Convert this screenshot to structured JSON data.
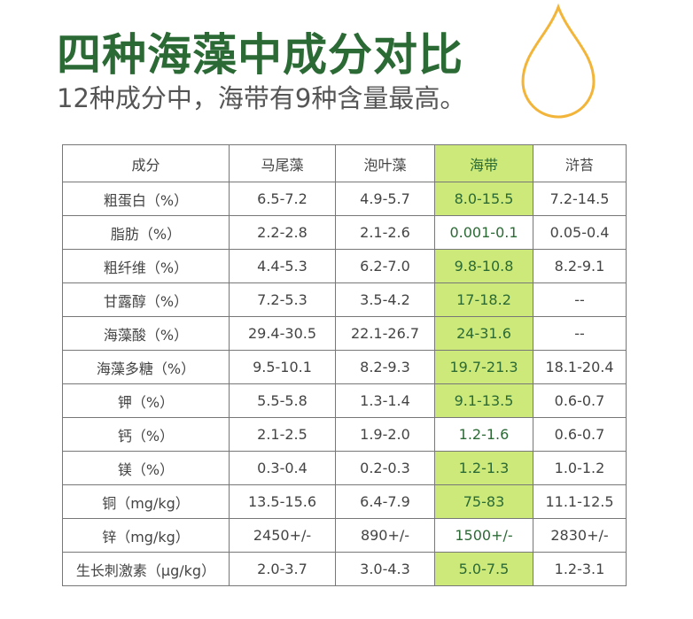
{
  "header": {
    "title": "四种海藻中成分对比",
    "subtitle": "12种成分中，海带有9种含量最高。"
  },
  "table": {
    "columns": [
      {
        "label": "成分",
        "highlight": false
      },
      {
        "label": "马尾藻",
        "highlight": false
      },
      {
        "label": "泡叶藻",
        "highlight": false
      },
      {
        "label": "海带",
        "highlight": true
      },
      {
        "label": "浒苔",
        "highlight": false
      }
    ],
    "rows": [
      {
        "cells": [
          "粗蛋白（%）",
          "6.5-7.2",
          "4.9-5.7",
          "8.0-15.5",
          "7.2-14.5"
        ],
        "highlight": true
      },
      {
        "cells": [
          "脂肪（%）",
          "2.2-2.8",
          "2.1-2.6",
          "0.001-0.1",
          "0.05-0.4"
        ],
        "highlight": false
      },
      {
        "cells": [
          "粗纤维（%）",
          "4.4-5.3",
          "6.2-7.0",
          "9.8-10.8",
          "8.2-9.1"
        ],
        "highlight": true
      },
      {
        "cells": [
          "甘露醇（%）",
          "7.2-5.3",
          "3.5-4.2",
          "17-18.2",
          "--"
        ],
        "highlight": true
      },
      {
        "cells": [
          "海藻酸（%）",
          "29.4-30.5",
          "22.1-26.7",
          "24-31.6",
          "--"
        ],
        "highlight": true
      },
      {
        "cells": [
          "海藻多糖（%）",
          "9.5-10.1",
          "8.2-9.3",
          "19.7-21.3",
          "18.1-20.4"
        ],
        "highlight": true
      },
      {
        "cells": [
          "钾（%）",
          "5.5-5.8",
          "1.3-1.4",
          "9.1-13.5",
          "0.6-0.7"
        ],
        "highlight": true
      },
      {
        "cells": [
          "钙（%）",
          "2.1-2.5",
          "1.9-2.0",
          "1.2-1.6",
          "0.6-0.7"
        ],
        "highlight": false
      },
      {
        "cells": [
          "镁（%）",
          "0.3-0.4",
          "0.2-0.3",
          "1.2-1.3",
          "1.0-1.2"
        ],
        "highlight": true
      },
      {
        "cells": [
          "铜（mg/kg）",
          "13.5-15.6",
          "6.4-7.9",
          "75-83",
          "11.1-12.5"
        ],
        "highlight": true
      },
      {
        "cells": [
          "锌（mg/kg）",
          "2450+/-",
          "890+/-",
          "1500+/-",
          "2830+/-"
        ],
        "highlight": false
      },
      {
        "cells": [
          "生长刺激素（μg/kg）",
          "2.0-3.7",
          "3.0-4.3",
          "5.0-7.5",
          "1.2-3.1"
        ],
        "highlight": true
      }
    ]
  }
}
